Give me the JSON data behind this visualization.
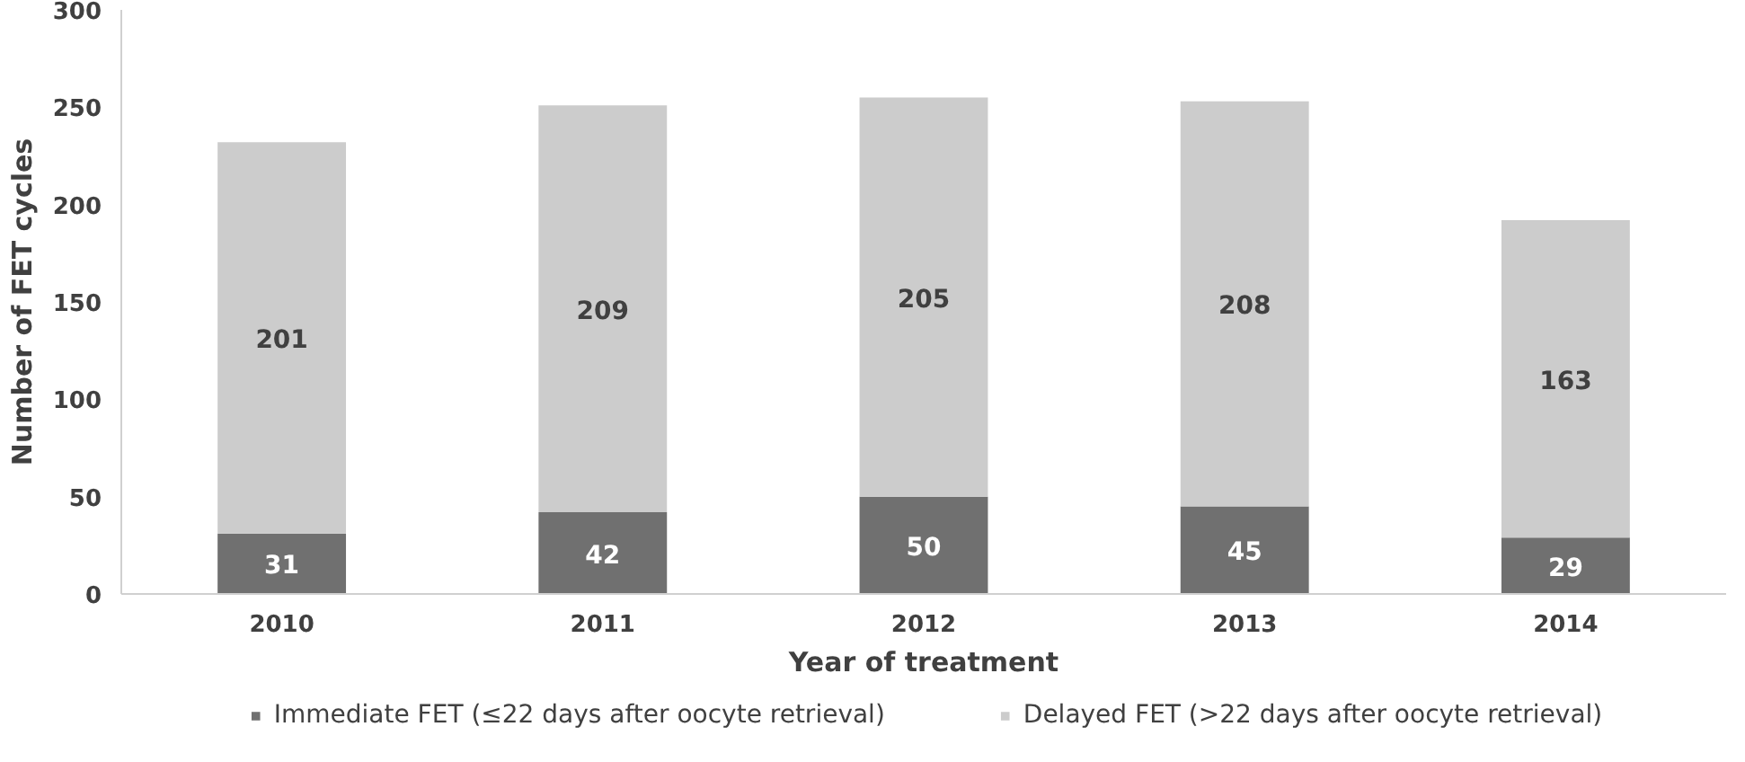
{
  "chart_data": {
    "type": "bar",
    "stacked": true,
    "xlabel": "Year of treatment",
    "ylabel": "Number of FET cycles",
    "categories": [
      "2010",
      "2011",
      "2012",
      "2013",
      "2014"
    ],
    "series": [
      {
        "name": "Immediate FET (≤22 days after oocyte retrieval)",
        "color": "#707070",
        "values": [
          31,
          42,
          50,
          45,
          29
        ]
      },
      {
        "name": "Delayed FET (>22 days after oocyte retrieval)",
        "color": "#cccccc",
        "values": [
          201,
          209,
          205,
          208,
          163
        ]
      }
    ],
    "ylim": [
      0,
      300
    ],
    "yticks": [
      0,
      50,
      100,
      150,
      200,
      250,
      300
    ],
    "grid": false,
    "legend": "bottom",
    "data_labels": true
  }
}
